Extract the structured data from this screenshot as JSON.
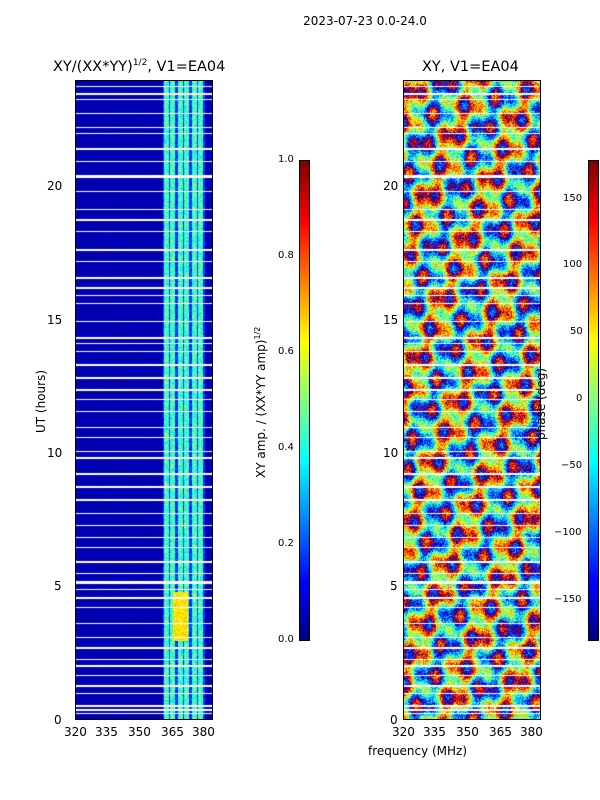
{
  "suptitle": "2023-07-23 0.0-24.0",
  "panels": [
    {
      "title": "XY/(XX*YY)",
      "title_exp": "1/2",
      "title_suffix": ", V1=EA04",
      "ylabel": "UT (hours)",
      "xticks": [
        "320",
        "335",
        "350",
        "365",
        "380"
      ],
      "yticks": [
        "0",
        "5",
        "10",
        "15",
        "20"
      ]
    },
    {
      "title": "XY, V1=EA04",
      "xticks": [
        "320",
        "335",
        "350",
        "365",
        "380"
      ],
      "yticks": [
        "0",
        "5",
        "10",
        "15",
        "20"
      ]
    }
  ],
  "xlabel": "frequency (MHz)",
  "colorbars": [
    {
      "label": "XY amp. / (XX*YY amp)",
      "label_exp": "1/2",
      "ticks": [
        "0.0",
        "0.2",
        "0.4",
        "0.6",
        "0.8",
        "1.0"
      ]
    },
    {
      "label": "phase (deg)",
      "ticks": [
        "−150",
        "−100",
        "−50",
        "0",
        "50",
        "100",
        "150"
      ]
    }
  ],
  "chart_data": [
    {
      "type": "heatmap",
      "title": "XY/(XX*YY)^1/2, V1=EA04",
      "xlabel": "frequency (MHz)",
      "ylabel": "UT (hours)",
      "xlim": [
        320,
        382
      ],
      "ylim": [
        0,
        24
      ],
      "colorbar": {
        "label": "XY amp. / (XX*YY amp)^1/2",
        "range": [
          0.0,
          1.0
        ]
      },
      "note": "mostly ~0.0 below ~360 MHz; bands ~0.3-0.6 between ~360-380 MHz; horizontal gaps (flagged times)"
    },
    {
      "type": "heatmap",
      "title": "XY, V1=EA04",
      "xlabel": "frequency (MHz)",
      "xlim": [
        320,
        382
      ],
      "ylim": [
        0,
        24
      ],
      "colorbar": {
        "label": "phase (deg)",
        "range": [
          -180,
          180
        ]
      },
      "note": "phase varies widely across full range"
    }
  ],
  "colors": {
    "jet": [
      "#00007f",
      "#0000ff",
      "#007fff",
      "#00ffff",
      "#7fff7f",
      "#ffff00",
      "#ff7f00",
      "#ff0000",
      "#7f0000"
    ]
  }
}
